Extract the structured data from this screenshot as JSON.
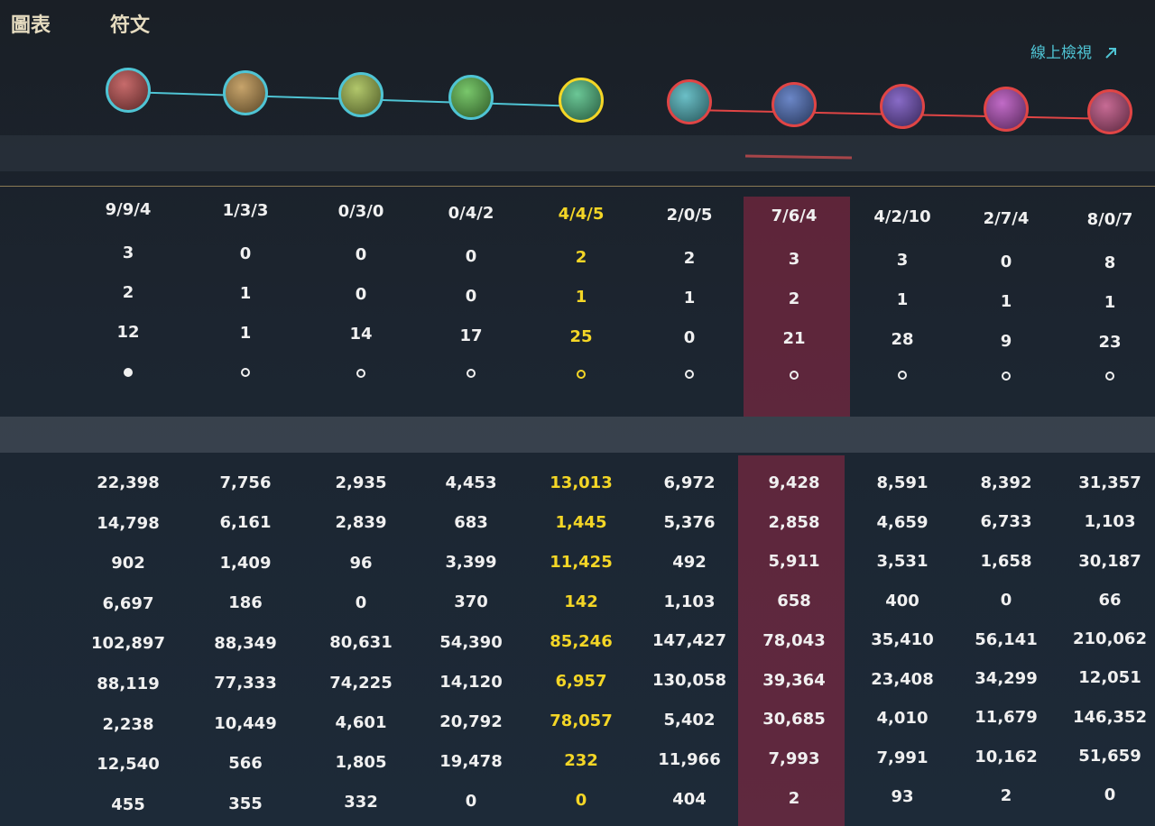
{
  "tabs": [
    "圖表",
    "符文"
  ],
  "link": "線上檢視",
  "table": {
    "kda": [
      "9/9/4",
      "1/3/3",
      "0/3/0",
      "0/4/2",
      "4/4/5",
      "2/0/5",
      "7/6/4",
      "4/2/10",
      "2/7/4",
      "8/0/7"
    ],
    "top_rows": [
      [
        3,
        0,
        0,
        0,
        2,
        2,
        3,
        3,
        0,
        8
      ],
      [
        2,
        1,
        0,
        0,
        1,
        1,
        2,
        1,
        1,
        1
      ],
      [
        12,
        1,
        14,
        17,
        25,
        0,
        21,
        28,
        9,
        23
      ]
    ],
    "bottom_rows": [
      [
        "22,398",
        "7,756",
        "2,935",
        "4,453",
        "13,013",
        "6,972",
        "9,428",
        "8,591",
        "8,392",
        "31,357"
      ],
      [
        "14,798",
        "6,161",
        "2,839",
        "683",
        "1,445",
        "5,376",
        "2,858",
        "4,659",
        "6,733",
        "1,103"
      ],
      [
        "902",
        "1,409",
        "96",
        "3,399",
        "11,425",
        "492",
        "5,911",
        "3,531",
        "1,658",
        "30,187"
      ],
      [
        "6,697",
        "186",
        "0",
        "370",
        "142",
        "1,103",
        "658",
        "400",
        "0",
        "66"
      ],
      [
        "102,897",
        "88,349",
        "80,631",
        "54,390",
        "85,246",
        "147,427",
        "78,043",
        "35,410",
        "56,141",
        "210,062"
      ],
      [
        "88,119",
        "77,333",
        "74,225",
        "14,120",
        "6,957",
        "130,058",
        "39,364",
        "23,408",
        "34,299",
        "12,051"
      ],
      [
        "2,238",
        "10,449",
        "4,601",
        "20,792",
        "78,057",
        "5,402",
        "30,685",
        "4,010",
        "11,679",
        "146,352"
      ],
      [
        "12,540",
        "566",
        "1,805",
        "19,478",
        "232",
        "11,966",
        "7,993",
        "7,991",
        "10,162",
        "51,659"
      ],
      [
        "455",
        "355",
        "332",
        "0",
        "0",
        "404",
        "2",
        "93",
        "2",
        "0"
      ]
    ]
  }
}
